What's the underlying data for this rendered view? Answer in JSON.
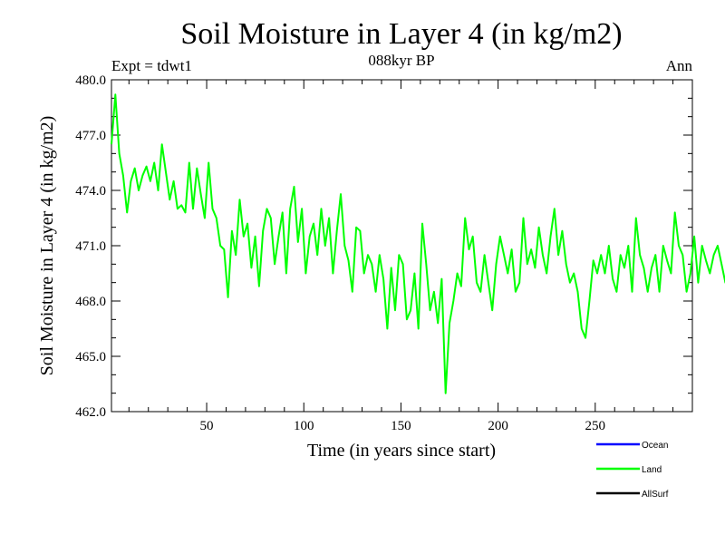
{
  "chart_data": {
    "type": "line",
    "title": "Soil Moisture in Layer 4 (in kg/m2)",
    "subtitle": "088kyr BP",
    "left_label": "Expt = tdwt1",
    "right_label": "Ann",
    "xlabel": "Time (in years since start)",
    "ylabel": "Soil Moisture in Layer 4 (in kg/m2)",
    "xlim": [
      1,
      300
    ],
    "ylim": [
      462.0,
      480.0
    ],
    "x_ticks": [
      50,
      100,
      150,
      200,
      250
    ],
    "x_tick_labels": [
      "50",
      "100",
      "150",
      "200",
      "250"
    ],
    "y_ticks": [
      462.0,
      465.0,
      468.0,
      471.0,
      474.0,
      477.0,
      480.0
    ],
    "y_tick_labels": [
      "462.0",
      "465.0",
      "468.0",
      "471.0",
      "474.0",
      "477.0",
      "480.0"
    ],
    "legend": [
      {
        "name": "Ocean",
        "color": "#0000ff"
      },
      {
        "name": "Land",
        "color": "#00ff00"
      },
      {
        "name": "AllSurf",
        "color": "#000000"
      }
    ],
    "series": [
      {
        "name": "Land",
        "color": "#00ff00",
        "x_start": 1,
        "x_step": 2,
        "values": [
          476.5,
          479.2,
          476.0,
          474.8,
          472.8,
          474.5,
          475.2,
          474.0,
          474.8,
          475.3,
          474.5,
          475.5,
          474.0,
          476.5,
          475.0,
          473.5,
          474.5,
          473.0,
          473.2,
          472.8,
          475.5,
          473.0,
          475.2,
          473.8,
          472.5,
          475.5,
          473.0,
          472.5,
          471.0,
          470.8,
          468.2,
          471.8,
          470.5,
          473.5,
          471.5,
          472.2,
          469.8,
          471.5,
          468.8,
          471.8,
          473.0,
          472.5,
          470.0,
          471.5,
          472.8,
          469.5,
          473.0,
          474.2,
          471.2,
          473.0,
          469.5,
          471.5,
          472.2,
          470.5,
          473.0,
          471.0,
          472.5,
          469.5,
          471.8,
          473.8,
          471.0,
          470.2,
          468.5,
          472.0,
          471.8,
          469.5,
          470.5,
          470.0,
          468.5,
          470.5,
          469.2,
          466.5,
          469.8,
          467.5,
          470.5,
          470.0,
          467.0,
          467.5,
          469.5,
          466.5,
          472.2,
          470.0,
          467.5,
          468.5,
          466.8,
          469.2,
          463.0,
          466.8,
          468.0,
          469.5,
          468.8,
          472.5,
          470.8,
          471.5,
          469.0,
          468.5,
          470.5,
          469.0,
          467.5,
          470.0,
          471.5,
          470.5,
          469.5,
          470.8,
          468.5,
          469.0,
          472.5,
          470.0,
          470.8,
          469.8,
          472.0,
          470.5,
          469.5,
          471.5,
          473.0,
          470.5,
          471.8,
          470.0,
          469.0,
          469.5,
          468.5,
          466.5,
          466.0,
          468.0,
          470.2,
          469.5,
          470.5,
          469.5,
          471.0,
          469.2,
          468.5,
          470.5,
          469.8,
          471.0,
          468.5,
          472.5,
          470.5,
          469.8,
          468.5,
          469.8,
          470.5,
          468.5,
          471.0,
          470.2,
          469.5,
          472.8,
          471.0,
          470.5,
          468.5,
          469.5,
          471.5,
          469.0,
          471.0,
          470.2,
          469.5,
          470.5,
          471.0,
          470.0,
          469.0,
          469.5
        ]
      }
    ]
  }
}
